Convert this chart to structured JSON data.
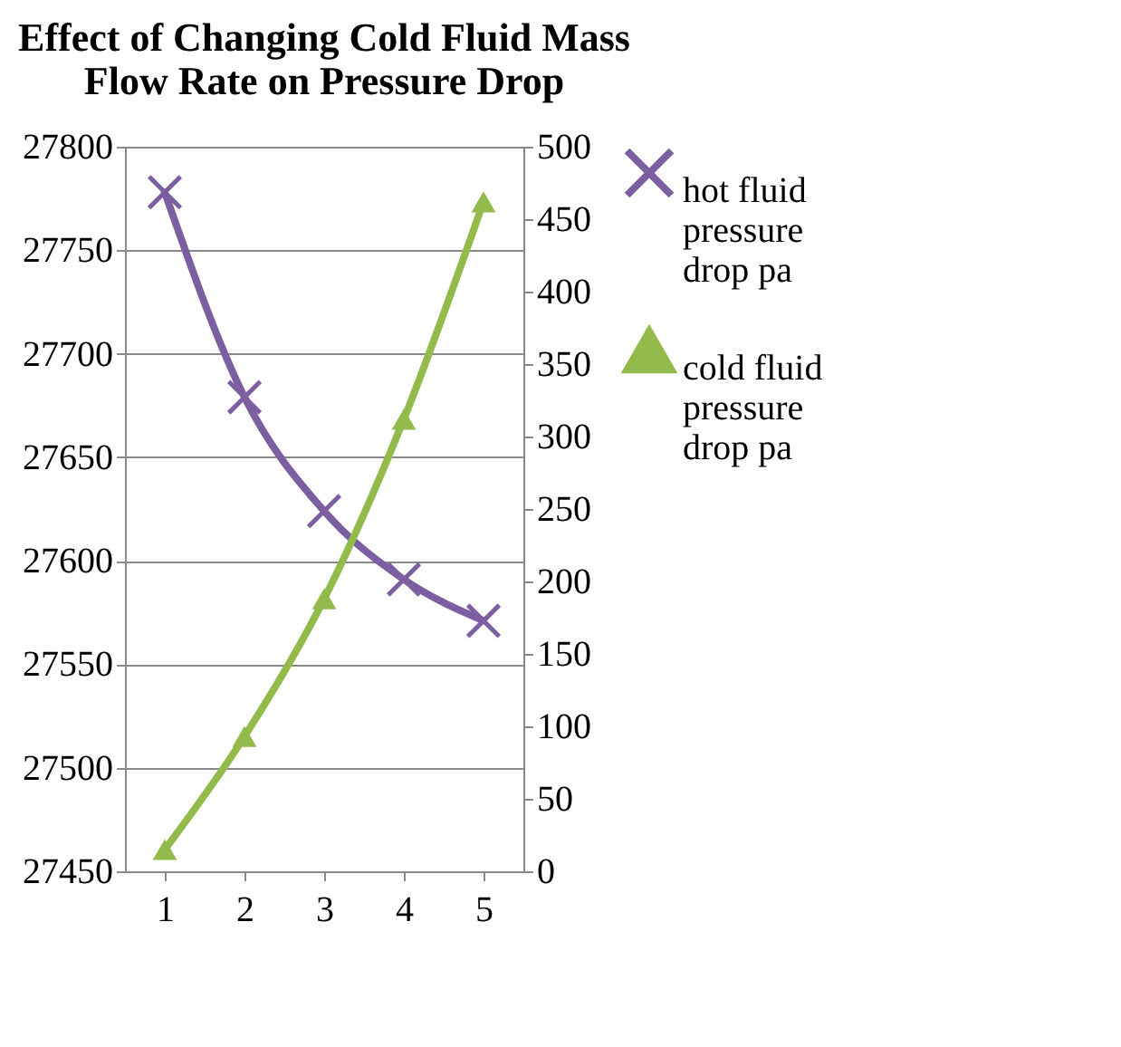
{
  "chart_data": {
    "type": "line",
    "title": "Effect of Changing Cold Fluid Mass Flow Rate on Pressure Drop",
    "categories": [
      "1",
      "2",
      "3",
      "4",
      "5"
    ],
    "series": [
      {
        "name": "hot fluid pressure drop pa",
        "color": "#7b5fa0",
        "marker": "cross",
        "values": [
          27778,
          27679,
          27624,
          27591,
          27571
        ]
      },
      {
        "name": "cold fluid pressure drop pa",
        "color": "#93bb4c",
        "marker": "triangle",
        "axis": "y2",
        "values": [
          15,
          93,
          188,
          312,
          462
        ]
      }
    ],
    "ylim": [
      27450,
      27800
    ],
    "yticks": [
      27450,
      27500,
      27550,
      27600,
      27650,
      27700,
      27750,
      27800
    ],
    "y2lim": [
      0,
      500
    ],
    "y2ticks": [
      0,
      50,
      100,
      150,
      200,
      250,
      300,
      350,
      400,
      450,
      500
    ],
    "grid": "y",
    "legend": "right"
  }
}
